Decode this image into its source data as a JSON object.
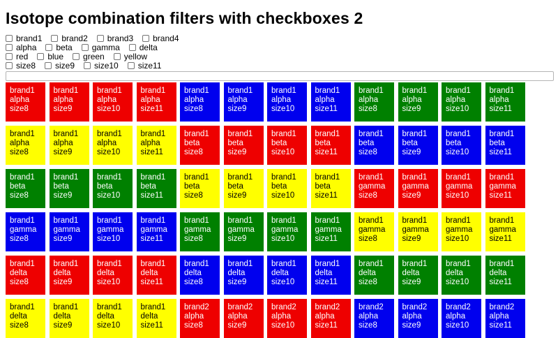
{
  "page": {
    "title": "Isotope combination filters with checkboxes 2"
  },
  "search": {
    "value": "",
    "placeholder": ""
  },
  "filters": [
    {
      "name": "brand",
      "options": [
        "brand1",
        "brand2",
        "brand3",
        "brand4"
      ]
    },
    {
      "name": "variant",
      "options": [
        "alpha",
        "beta",
        "gamma",
        "delta"
      ]
    },
    {
      "name": "color",
      "options": [
        "red",
        "blue",
        "green",
        "yellow"
      ]
    },
    {
      "name": "size",
      "options": [
        "size8",
        "size9",
        "size10",
        "size11"
      ]
    }
  ],
  "colors": {
    "red": "#ee0000",
    "blue": "#0000ee",
    "green": "#008000",
    "yellow": "#ffff00"
  },
  "text_colors": {
    "yellow": "#000000",
    "default": "#ffffff"
  },
  "tiles": [
    {
      "brand": "brand1",
      "variant": "alpha",
      "size": "size8",
      "color": "red"
    },
    {
      "brand": "brand1",
      "variant": "alpha",
      "size": "size9",
      "color": "red"
    },
    {
      "brand": "brand1",
      "variant": "alpha",
      "size": "size10",
      "color": "red"
    },
    {
      "brand": "brand1",
      "variant": "alpha",
      "size": "size11",
      "color": "red"
    },
    {
      "brand": "brand1",
      "variant": "alpha",
      "size": "size8",
      "color": "blue"
    },
    {
      "brand": "brand1",
      "variant": "alpha",
      "size": "size9",
      "color": "blue"
    },
    {
      "brand": "brand1",
      "variant": "alpha",
      "size": "size10",
      "color": "blue"
    },
    {
      "brand": "brand1",
      "variant": "alpha",
      "size": "size11",
      "color": "blue"
    },
    {
      "brand": "brand1",
      "variant": "alpha",
      "size": "size8",
      "color": "green"
    },
    {
      "brand": "brand1",
      "variant": "alpha",
      "size": "size9",
      "color": "green"
    },
    {
      "brand": "brand1",
      "variant": "alpha",
      "size": "size10",
      "color": "green"
    },
    {
      "brand": "brand1",
      "variant": "alpha",
      "size": "size11",
      "color": "green"
    },
    {
      "brand": "brand1",
      "variant": "alpha",
      "size": "size8",
      "color": "yellow"
    },
    {
      "brand": "brand1",
      "variant": "alpha",
      "size": "size9",
      "color": "yellow"
    },
    {
      "brand": "brand1",
      "variant": "alpha",
      "size": "size10",
      "color": "yellow"
    },
    {
      "brand": "brand1",
      "variant": "alpha",
      "size": "size11",
      "color": "yellow"
    },
    {
      "brand": "brand1",
      "variant": "beta",
      "size": "size8",
      "color": "red"
    },
    {
      "brand": "brand1",
      "variant": "beta",
      "size": "size9",
      "color": "red"
    },
    {
      "brand": "brand1",
      "variant": "beta",
      "size": "size10",
      "color": "red"
    },
    {
      "brand": "brand1",
      "variant": "beta",
      "size": "size11",
      "color": "red"
    },
    {
      "brand": "brand1",
      "variant": "beta",
      "size": "size8",
      "color": "blue"
    },
    {
      "brand": "brand1",
      "variant": "beta",
      "size": "size9",
      "color": "blue"
    },
    {
      "brand": "brand1",
      "variant": "beta",
      "size": "size10",
      "color": "blue"
    },
    {
      "brand": "brand1",
      "variant": "beta",
      "size": "size11",
      "color": "blue"
    },
    {
      "brand": "brand1",
      "variant": "beta",
      "size": "size8",
      "color": "green"
    },
    {
      "brand": "brand1",
      "variant": "beta",
      "size": "size9",
      "color": "green"
    },
    {
      "brand": "brand1",
      "variant": "beta",
      "size": "size10",
      "color": "green"
    },
    {
      "brand": "brand1",
      "variant": "beta",
      "size": "size11",
      "color": "green"
    },
    {
      "brand": "brand1",
      "variant": "beta",
      "size": "size8",
      "color": "yellow"
    },
    {
      "brand": "brand1",
      "variant": "beta",
      "size": "size9",
      "color": "yellow"
    },
    {
      "brand": "brand1",
      "variant": "beta",
      "size": "size10",
      "color": "yellow"
    },
    {
      "brand": "brand1",
      "variant": "beta",
      "size": "size11",
      "color": "yellow"
    },
    {
      "brand": "brand1",
      "variant": "gamma",
      "size": "size8",
      "color": "red"
    },
    {
      "brand": "brand1",
      "variant": "gamma",
      "size": "size9",
      "color": "red"
    },
    {
      "brand": "brand1",
      "variant": "gamma",
      "size": "size10",
      "color": "red"
    },
    {
      "brand": "brand1",
      "variant": "gamma",
      "size": "size11",
      "color": "red"
    },
    {
      "brand": "brand1",
      "variant": "gamma",
      "size": "size8",
      "color": "blue"
    },
    {
      "brand": "brand1",
      "variant": "gamma",
      "size": "size9",
      "color": "blue"
    },
    {
      "brand": "brand1",
      "variant": "gamma",
      "size": "size10",
      "color": "blue"
    },
    {
      "brand": "brand1",
      "variant": "gamma",
      "size": "size11",
      "color": "blue"
    },
    {
      "brand": "brand1",
      "variant": "gamma",
      "size": "size8",
      "color": "green"
    },
    {
      "brand": "brand1",
      "variant": "gamma",
      "size": "size9",
      "color": "green"
    },
    {
      "brand": "brand1",
      "variant": "gamma",
      "size": "size10",
      "color": "green"
    },
    {
      "brand": "brand1",
      "variant": "gamma",
      "size": "size11",
      "color": "green"
    },
    {
      "brand": "brand1",
      "variant": "gamma",
      "size": "size8",
      "color": "yellow"
    },
    {
      "brand": "brand1",
      "variant": "gamma",
      "size": "size9",
      "color": "yellow"
    },
    {
      "brand": "brand1",
      "variant": "gamma",
      "size": "size10",
      "color": "yellow"
    },
    {
      "brand": "brand1",
      "variant": "gamma",
      "size": "size11",
      "color": "yellow"
    },
    {
      "brand": "brand1",
      "variant": "delta",
      "size": "size8",
      "color": "red"
    },
    {
      "brand": "brand1",
      "variant": "delta",
      "size": "size9",
      "color": "red"
    },
    {
      "brand": "brand1",
      "variant": "delta",
      "size": "size10",
      "color": "red"
    },
    {
      "brand": "brand1",
      "variant": "delta",
      "size": "size11",
      "color": "red"
    },
    {
      "brand": "brand1",
      "variant": "delta",
      "size": "size8",
      "color": "blue"
    },
    {
      "brand": "brand1",
      "variant": "delta",
      "size": "size9",
      "color": "blue"
    },
    {
      "brand": "brand1",
      "variant": "delta",
      "size": "size10",
      "color": "blue"
    },
    {
      "brand": "brand1",
      "variant": "delta",
      "size": "size11",
      "color": "blue"
    },
    {
      "brand": "brand1",
      "variant": "delta",
      "size": "size8",
      "color": "green"
    },
    {
      "brand": "brand1",
      "variant": "delta",
      "size": "size9",
      "color": "green"
    },
    {
      "brand": "brand1",
      "variant": "delta",
      "size": "size10",
      "color": "green"
    },
    {
      "brand": "brand1",
      "variant": "delta",
      "size": "size11",
      "color": "green"
    },
    {
      "brand": "brand1",
      "variant": "delta",
      "size": "size8",
      "color": "yellow"
    },
    {
      "brand": "brand1",
      "variant": "delta",
      "size": "size9",
      "color": "yellow"
    },
    {
      "brand": "brand1",
      "variant": "delta",
      "size": "size10",
      "color": "yellow"
    },
    {
      "brand": "brand1",
      "variant": "delta",
      "size": "size11",
      "color": "yellow"
    },
    {
      "brand": "brand2",
      "variant": "alpha",
      "size": "size8",
      "color": "red"
    },
    {
      "brand": "brand2",
      "variant": "alpha",
      "size": "size9",
      "color": "red"
    },
    {
      "brand": "brand2",
      "variant": "alpha",
      "size": "size10",
      "color": "red"
    },
    {
      "brand": "brand2",
      "variant": "alpha",
      "size": "size11",
      "color": "red"
    },
    {
      "brand": "brand2",
      "variant": "alpha",
      "size": "size8",
      "color": "blue"
    },
    {
      "brand": "brand2",
      "variant": "alpha",
      "size": "size9",
      "color": "blue"
    },
    {
      "brand": "brand2",
      "variant": "alpha",
      "size": "size10",
      "color": "blue"
    },
    {
      "brand": "brand2",
      "variant": "alpha",
      "size": "size11",
      "color": "blue"
    }
  ]
}
